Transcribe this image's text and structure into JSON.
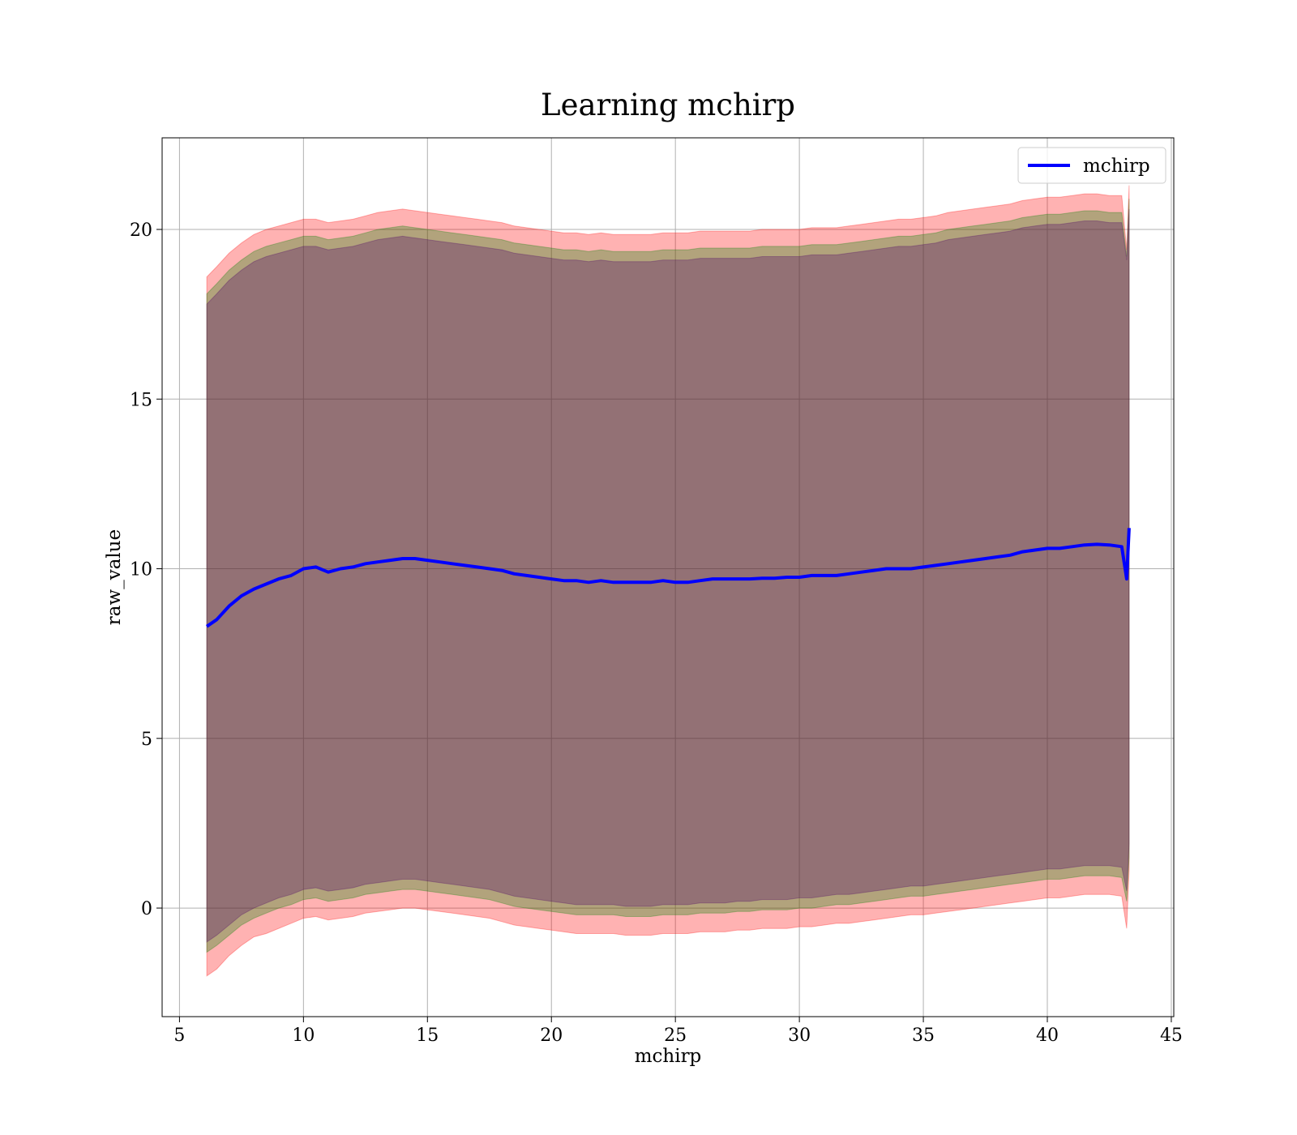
{
  "chart_data": {
    "type": "line",
    "title": "Learning mchirp",
    "xlabel": "mchirp",
    "ylabel": "raw_value",
    "xlim": [
      4.3,
      45.1
    ],
    "ylim": [
      -3.2,
      22.7
    ],
    "xticks": [
      5,
      10,
      15,
      20,
      25,
      30,
      35,
      40,
      45
    ],
    "yticks": [
      0,
      5,
      10,
      15,
      20
    ],
    "grid": true,
    "legend_position": "top-right",
    "series": [
      {
        "name": "mchirp",
        "color": "#0000ff",
        "x": [
          6.1,
          6.5,
          7.0,
          7.5,
          8.0,
          8.5,
          9.0,
          9.5,
          10.0,
          10.5,
          11.0,
          11.5,
          12.0,
          12.5,
          13.0,
          13.5,
          14.0,
          14.5,
          15.0,
          15.5,
          16.0,
          16.5,
          17.0,
          17.5,
          18.0,
          18.5,
          19.0,
          19.5,
          20.0,
          20.5,
          21.0,
          21.5,
          22.0,
          22.5,
          23.0,
          23.5,
          24.0,
          24.5,
          25.0,
          25.5,
          26.0,
          26.5,
          27.0,
          27.5,
          28.0,
          28.5,
          29.0,
          29.5,
          30.0,
          30.5,
          31.0,
          31.5,
          32.0,
          32.5,
          33.0,
          33.5,
          34.0,
          34.5,
          35.0,
          35.5,
          36.0,
          36.5,
          37.0,
          37.5,
          38.0,
          38.5,
          39.0,
          39.5,
          40.0,
          40.5,
          41.0,
          41.5,
          42.0,
          42.5,
          43.0,
          43.2,
          43.3
        ],
        "values": [
          8.3,
          8.5,
          8.9,
          9.2,
          9.4,
          9.55,
          9.7,
          9.8,
          10.0,
          10.05,
          9.9,
          10.0,
          10.05,
          10.15,
          10.2,
          10.25,
          10.3,
          10.3,
          10.25,
          10.2,
          10.15,
          10.1,
          10.05,
          10.0,
          9.95,
          9.85,
          9.8,
          9.75,
          9.7,
          9.65,
          9.65,
          9.6,
          9.65,
          9.6,
          9.6,
          9.6,
          9.6,
          9.65,
          9.6,
          9.6,
          9.65,
          9.7,
          9.7,
          9.7,
          9.7,
          9.72,
          9.72,
          9.75,
          9.75,
          9.8,
          9.8,
          9.8,
          9.85,
          9.9,
          9.95,
          10.0,
          10.0,
          10.0,
          10.05,
          10.1,
          10.15,
          10.2,
          10.25,
          10.3,
          10.35,
          10.4,
          10.5,
          10.55,
          10.6,
          10.6,
          10.65,
          10.7,
          10.72,
          10.7,
          10.65,
          9.7,
          11.2
        ]
      }
    ],
    "bands": [
      {
        "color": "#ff0000",
        "opacity": 0.3,
        "upper": [
          18.6,
          18.9,
          19.3,
          19.6,
          19.85,
          20.0,
          20.1,
          20.2,
          20.3,
          20.3,
          20.2,
          20.25,
          20.3,
          20.4,
          20.5,
          20.55,
          20.6,
          20.55,
          20.5,
          20.45,
          20.4,
          20.35,
          20.3,
          20.25,
          20.2,
          20.1,
          20.05,
          20.0,
          19.95,
          19.9,
          19.9,
          19.85,
          19.9,
          19.85,
          19.85,
          19.85,
          19.85,
          19.9,
          19.9,
          19.9,
          19.95,
          19.95,
          19.95,
          19.95,
          19.95,
          20.0,
          20.0,
          20.0,
          20.0,
          20.05,
          20.05,
          20.05,
          20.1,
          20.15,
          20.2,
          20.25,
          20.3,
          20.3,
          20.35,
          20.4,
          20.5,
          20.55,
          20.6,
          20.65,
          20.7,
          20.75,
          20.85,
          20.9,
          20.95,
          20.95,
          21.0,
          21.05,
          21.05,
          21.0,
          21.0,
          19.4,
          21.3
        ],
        "lower": [
          -2.0,
          -1.8,
          -1.4,
          -1.1,
          -0.85,
          -0.75,
          -0.6,
          -0.45,
          -0.3,
          -0.25,
          -0.35,
          -0.3,
          -0.25,
          -0.15,
          -0.1,
          -0.05,
          0.0,
          0.0,
          -0.05,
          -0.1,
          -0.15,
          -0.2,
          -0.25,
          -0.3,
          -0.4,
          -0.5,
          -0.55,
          -0.6,
          -0.65,
          -0.7,
          -0.75,
          -0.75,
          -0.75,
          -0.75,
          -0.8,
          -0.8,
          -0.8,
          -0.75,
          -0.75,
          -0.75,
          -0.7,
          -0.7,
          -0.7,
          -0.65,
          -0.65,
          -0.6,
          -0.6,
          -0.6,
          -0.55,
          -0.55,
          -0.5,
          -0.45,
          -0.45,
          -0.4,
          -0.35,
          -0.3,
          -0.25,
          -0.2,
          -0.2,
          -0.15,
          -0.1,
          -0.05,
          0.0,
          0.05,
          0.1,
          0.15,
          0.2,
          0.25,
          0.3,
          0.3,
          0.35,
          0.4,
          0.4,
          0.4,
          0.35,
          -0.6,
          1.1
        ]
      },
      {
        "color": "#008000",
        "opacity": 0.3,
        "upper": [
          18.1,
          18.4,
          18.8,
          19.1,
          19.35,
          19.5,
          19.6,
          19.7,
          19.8,
          19.8,
          19.7,
          19.75,
          19.8,
          19.9,
          20.0,
          20.05,
          20.1,
          20.05,
          20.0,
          19.95,
          19.9,
          19.85,
          19.8,
          19.75,
          19.7,
          19.6,
          19.55,
          19.5,
          19.45,
          19.4,
          19.4,
          19.35,
          19.4,
          19.35,
          19.35,
          19.35,
          19.35,
          19.4,
          19.4,
          19.4,
          19.45,
          19.45,
          19.45,
          19.45,
          19.45,
          19.5,
          19.5,
          19.5,
          19.5,
          19.55,
          19.55,
          19.55,
          19.6,
          19.65,
          19.7,
          19.75,
          19.8,
          19.8,
          19.85,
          19.9,
          20.0,
          20.05,
          20.1,
          20.15,
          20.2,
          20.25,
          20.35,
          20.4,
          20.45,
          20.45,
          20.5,
          20.55,
          20.55,
          20.5,
          20.5,
          19.2,
          20.9
        ],
        "lower": [
          -1.3,
          -1.1,
          -0.8,
          -0.5,
          -0.3,
          -0.15,
          0.0,
          0.1,
          0.25,
          0.3,
          0.2,
          0.25,
          0.3,
          0.4,
          0.45,
          0.5,
          0.55,
          0.55,
          0.5,
          0.45,
          0.4,
          0.35,
          0.3,
          0.25,
          0.15,
          0.05,
          0.0,
          -0.05,
          -0.1,
          -0.15,
          -0.2,
          -0.2,
          -0.2,
          -0.2,
          -0.25,
          -0.25,
          -0.25,
          -0.2,
          -0.2,
          -0.2,
          -0.15,
          -0.15,
          -0.15,
          -0.1,
          -0.1,
          -0.05,
          -0.05,
          -0.05,
          0.0,
          0.0,
          0.05,
          0.1,
          0.1,
          0.15,
          0.2,
          0.25,
          0.3,
          0.35,
          0.35,
          0.4,
          0.45,
          0.5,
          0.55,
          0.6,
          0.65,
          0.7,
          0.75,
          0.8,
          0.85,
          0.85,
          0.9,
          0.95,
          0.95,
          0.95,
          0.9,
          0.2,
          1.5
        ]
      },
      {
        "color": "#4b0066",
        "opacity": 0.3,
        "upper": [
          17.8,
          18.1,
          18.5,
          18.8,
          19.05,
          19.2,
          19.3,
          19.4,
          19.5,
          19.5,
          19.4,
          19.45,
          19.5,
          19.6,
          19.7,
          19.75,
          19.8,
          19.75,
          19.7,
          19.65,
          19.6,
          19.55,
          19.5,
          19.45,
          19.4,
          19.3,
          19.25,
          19.2,
          19.15,
          19.1,
          19.1,
          19.05,
          19.1,
          19.05,
          19.05,
          19.05,
          19.05,
          19.1,
          19.1,
          19.1,
          19.15,
          19.15,
          19.15,
          19.15,
          19.15,
          19.2,
          19.2,
          19.2,
          19.2,
          19.25,
          19.25,
          19.25,
          19.3,
          19.35,
          19.4,
          19.45,
          19.5,
          19.5,
          19.55,
          19.6,
          19.7,
          19.75,
          19.8,
          19.85,
          19.9,
          19.95,
          20.05,
          20.1,
          20.15,
          20.15,
          20.2,
          20.25,
          20.25,
          20.2,
          20.2,
          19.1,
          20.6
        ],
        "lower": [
          -1.0,
          -0.8,
          -0.5,
          -0.2,
          0.0,
          0.15,
          0.3,
          0.4,
          0.55,
          0.6,
          0.5,
          0.55,
          0.6,
          0.7,
          0.75,
          0.8,
          0.85,
          0.85,
          0.8,
          0.75,
          0.7,
          0.65,
          0.6,
          0.55,
          0.45,
          0.35,
          0.3,
          0.25,
          0.2,
          0.15,
          0.1,
          0.1,
          0.1,
          0.1,
          0.05,
          0.05,
          0.05,
          0.1,
          0.1,
          0.1,
          0.15,
          0.15,
          0.15,
          0.2,
          0.2,
          0.25,
          0.25,
          0.25,
          0.3,
          0.3,
          0.35,
          0.4,
          0.4,
          0.45,
          0.5,
          0.55,
          0.6,
          0.65,
          0.65,
          0.7,
          0.75,
          0.8,
          0.85,
          0.9,
          0.95,
          1.0,
          1.05,
          1.1,
          1.15,
          1.15,
          1.2,
          1.25,
          1.25,
          1.25,
          1.2,
          0.5,
          1.9
        ]
      }
    ]
  }
}
